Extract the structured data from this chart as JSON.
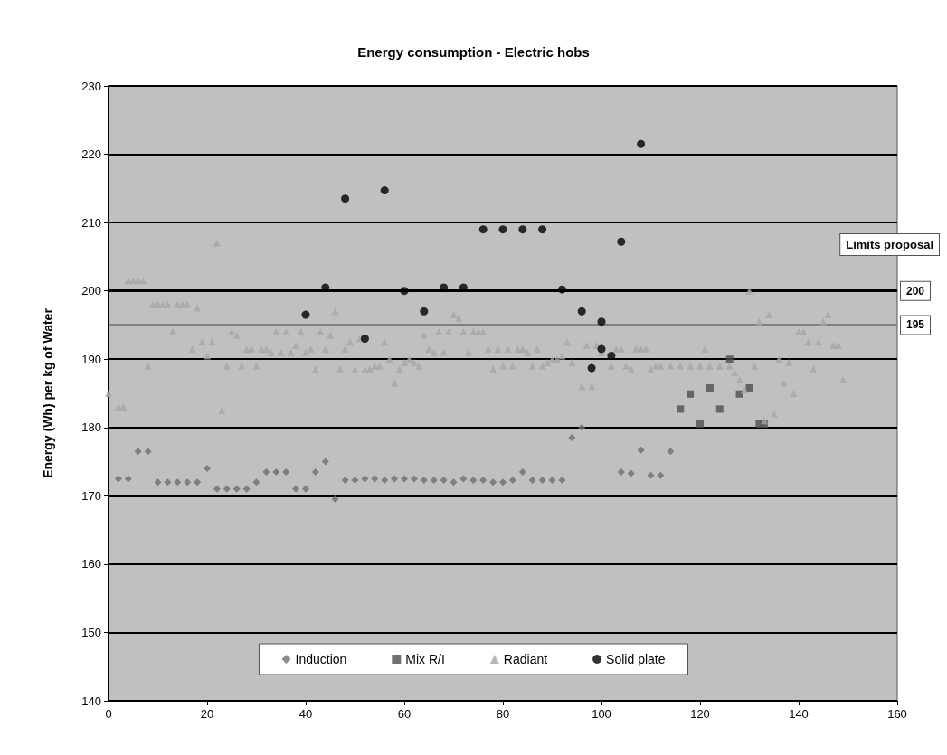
{
  "chart_data": {
    "type": "scatter",
    "title": "Energy consumption - Electric hobs",
    "ylabel": "Energy (Wh) per kg of Water",
    "xlim": [
      0,
      160
    ],
    "xticks": [
      0,
      20,
      40,
      60,
      80,
      100,
      120,
      140,
      160
    ],
    "ylim": [
      140,
      230
    ],
    "yticks": [
      140,
      150,
      160,
      170,
      180,
      190,
      200,
      210,
      220,
      230
    ],
    "grid": "y",
    "legend": "bottom",
    "annotations": [
      "Limits proposal"
    ],
    "ref_lines": [
      {
        "axis": "y",
        "value": 200,
        "label": "200",
        "color": "#000000"
      },
      {
        "axis": "y",
        "value": 195,
        "label": "195",
        "color": "#808080"
      }
    ],
    "series": [
      {
        "name": "Induction",
        "color": "#6e6e6e",
        "marker": "diamond",
        "x": [
          2,
          4,
          6,
          8,
          10,
          12,
          14,
          16,
          18,
          20,
          22,
          24,
          26,
          28,
          30,
          32,
          34,
          36,
          38,
          40,
          42,
          44,
          46,
          48,
          50,
          52,
          54,
          56,
          58,
          60,
          62,
          64,
          66,
          68,
          70,
          72,
          74,
          76,
          78,
          80,
          82,
          84,
          86,
          88,
          90,
          92,
          94,
          96,
          104,
          106,
          108,
          110,
          112,
          114
        ],
        "values": [
          172.5,
          172.5,
          176.5,
          176.5,
          172,
          172,
          172,
          172,
          172,
          174,
          171,
          171,
          171,
          171,
          172,
          173.5,
          173.5,
          173.5,
          171,
          171,
          173.5,
          175,
          169.5,
          172.3,
          172.3,
          172.5,
          172.5,
          172.3,
          172.5,
          172.5,
          172.5,
          172.3,
          172.3,
          172.3,
          172,
          172.5,
          172.3,
          172.3,
          172,
          172,
          172.3,
          173.5,
          172.3,
          172.3,
          172.3,
          172.3,
          178.5,
          180,
          173.5,
          173.3,
          176.7,
          173,
          173,
          176.5
        ]
      },
      {
        "name": "Mix R/I",
        "color": "#4d4d4d",
        "marker": "square",
        "x": [
          116,
          118,
          120,
          122,
          124,
          126,
          128,
          130,
          132,
          133
        ],
        "values": [
          182.7,
          184.9,
          180.5,
          185.8,
          182.7,
          190,
          184.9,
          185.8,
          180.5,
          180.5
        ]
      },
      {
        "name": "Radiant",
        "color": "#a6a6a6",
        "marker": "triangle",
        "x": [
          0,
          2,
          3,
          4,
          5,
          6,
          7,
          8,
          9,
          10,
          11,
          12,
          13,
          14,
          15,
          16,
          17,
          18,
          19,
          20,
          21,
          22,
          23,
          24,
          25,
          26,
          27,
          28,
          29,
          30,
          31,
          32,
          33,
          34,
          35,
          36,
          37,
          38,
          39,
          40,
          41,
          42,
          43,
          44,
          45,
          46,
          47,
          48,
          49,
          50,
          51,
          52,
          53,
          54,
          55,
          56,
          57,
          58,
          59,
          60,
          61,
          62,
          63,
          64,
          65,
          66,
          67,
          68,
          69,
          70,
          71,
          72,
          73,
          74,
          75,
          76,
          77,
          78,
          79,
          80,
          81,
          82,
          83,
          84,
          85,
          86,
          87,
          88,
          89,
          90,
          91,
          92,
          93,
          94,
          96,
          97,
          98,
          99,
          100,
          102,
          103,
          104,
          105,
          106,
          107,
          108,
          109,
          110,
          111,
          112,
          114,
          116,
          118,
          120,
          121,
          122,
          124,
          126,
          127,
          128,
          129,
          130,
          131,
          132,
          133,
          134,
          135,
          136,
          137,
          138,
          139,
          140,
          141,
          142,
          143,
          144,
          145,
          146,
          147,
          148,
          149
        ],
        "values": [
          185,
          183,
          183,
          201.5,
          201.5,
          201.5,
          201.5,
          189,
          198,
          198,
          198,
          198,
          194,
          198,
          198,
          198,
          191.5,
          197.5,
          192.5,
          190.5,
          192.5,
          207,
          182.5,
          189,
          194,
          193.5,
          189,
          191.5,
          191.5,
          189,
          191.5,
          191.5,
          191,
          194,
          191,
          194,
          191,
          192,
          194,
          191,
          191.5,
          188.5,
          194,
          191.5,
          193.5,
          197,
          188.5,
          191.5,
          192.5,
          188.5,
          193,
          188.5,
          188.5,
          189,
          189,
          192.5,
          190,
          186.5,
          188.5,
          189.5,
          190,
          189.5,
          189,
          193.5,
          191.5,
          191,
          194,
          191,
          194,
          196.5,
          196,
          194,
          191,
          194,
          194,
          194,
          191.5,
          188.5,
          191.5,
          189,
          191.5,
          189,
          191.5,
          191.5,
          191,
          189,
          191.5,
          189,
          189.5,
          190,
          190,
          190.5,
          192.5,
          189.5,
          186,
          192,
          186,
          192,
          191,
          189,
          191.5,
          191.5,
          189,
          188.5,
          191.5,
          191.5,
          191.5,
          188.5,
          189,
          189,
          189,
          189,
          189,
          189,
          191.5,
          189,
          189,
          189,
          188,
          187,
          185.5,
          200,
          189,
          195.5,
          181,
          196.5,
          182,
          190,
          186.5,
          189.5,
          185,
          194,
          194,
          192.5,
          188.5,
          192.5,
          195.5,
          196.5,
          192,
          192,
          187
        ]
      },
      {
        "name": "Solid plate",
        "color": "#000000",
        "marker": "circle",
        "x": [
          40,
          44,
          48,
          52,
          56,
          60,
          64,
          68,
          72,
          76,
          80,
          84,
          88,
          92,
          96,
          98,
          100,
          100,
          102,
          104,
          108
        ],
        "values": [
          196.5,
          200.5,
          213.5,
          193,
          214.7,
          200,
          197,
          200.5,
          200.5,
          209,
          209,
          209,
          209,
          200.2,
          197,
          188.7,
          195.5,
          191.5,
          190.5,
          207.2,
          221.5
        ]
      }
    ]
  }
}
